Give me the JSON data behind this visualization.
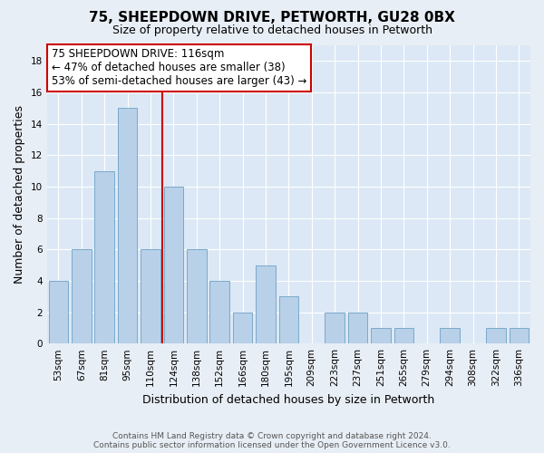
{
  "title": "75, SHEEPDOWN DRIVE, PETWORTH, GU28 0BX",
  "subtitle": "Size of property relative to detached houses in Petworth",
  "xlabel": "Distribution of detached houses by size in Petworth",
  "ylabel": "Number of detached properties",
  "bar_labels": [
    "53sqm",
    "67sqm",
    "81sqm",
    "95sqm",
    "110sqm",
    "124sqm",
    "138sqm",
    "152sqm",
    "166sqm",
    "180sqm",
    "195sqm",
    "209sqm",
    "223sqm",
    "237sqm",
    "251sqm",
    "265sqm",
    "279sqm",
    "294sqm",
    "308sqm",
    "322sqm",
    "336sqm"
  ],
  "bar_values": [
    4,
    6,
    11,
    15,
    6,
    10,
    6,
    4,
    2,
    5,
    3,
    0,
    2,
    2,
    1,
    1,
    0,
    1,
    0,
    1,
    1
  ],
  "bar_color": "#b8d0e8",
  "bar_edge_color": "#7aaaca",
  "vline_x": 4.5,
  "vline_color": "#cc0000",
  "annotation_title": "75 SHEEPDOWN DRIVE: 116sqm",
  "annotation_line2": "← 47% of detached houses are smaller (38)",
  "annotation_line3": "53% of semi-detached houses are larger (43) →",
  "annotation_box_color": "#cc0000",
  "ylim": [
    0,
    19
  ],
  "yticks": [
    0,
    2,
    4,
    6,
    8,
    10,
    12,
    14,
    16,
    18
  ],
  "footer_line1": "Contains HM Land Registry data © Crown copyright and database right 2024.",
  "footer_line2": "Contains public sector information licensed under the Open Government Licence v3.0.",
  "bg_color": "#e8eef5",
  "plot_bg_color": "#dce8f5",
  "grid_color": "#ffffff",
  "title_fontsize": 11,
  "subtitle_fontsize": 9,
  "ylabel_fontsize": 9,
  "xlabel_fontsize": 9,
  "tick_fontsize": 7.5,
  "annotation_fontsize": 8.5,
  "footer_fontsize": 6.5,
  "bar_width": 0.85
}
